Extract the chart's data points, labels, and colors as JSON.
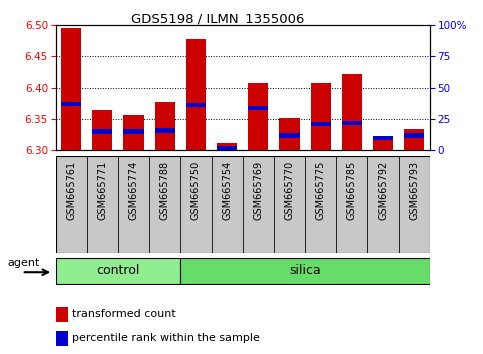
{
  "title": "GDS5198 / ILMN_1355006",
  "samples": [
    "GSM665761",
    "GSM665771",
    "GSM665774",
    "GSM665788",
    "GSM665750",
    "GSM665754",
    "GSM665769",
    "GSM665770",
    "GSM665775",
    "GSM665785",
    "GSM665792",
    "GSM665793"
  ],
  "groups": [
    "control",
    "control",
    "control",
    "control",
    "silica",
    "silica",
    "silica",
    "silica",
    "silica",
    "silica",
    "silica",
    "silica"
  ],
  "red_values": [
    6.495,
    6.365,
    6.357,
    6.377,
    6.477,
    6.312,
    6.408,
    6.352,
    6.408,
    6.422,
    6.318,
    6.334
  ],
  "blue_percentiles": [
    37,
    15,
    15,
    16,
    36,
    2,
    34,
    12,
    21,
    22,
    10,
    12
  ],
  "ymin": 6.3,
  "ymax": 6.5,
  "y_ticks": [
    6.3,
    6.35,
    6.4,
    6.45,
    6.5
  ],
  "right_ticks": [
    0,
    25,
    50,
    75,
    100
  ],
  "bar_color": "#cc0000",
  "blue_color": "#0000cc",
  "control_color": "#90ee90",
  "silica_color": "#66dd66",
  "group_bg": "#c8c8c8",
  "bg_color": "#ffffff",
  "agent_label": "agent",
  "legend_red": "transformed count",
  "legend_blue": "percentile rank within the sample",
  "bar_width": 0.65
}
